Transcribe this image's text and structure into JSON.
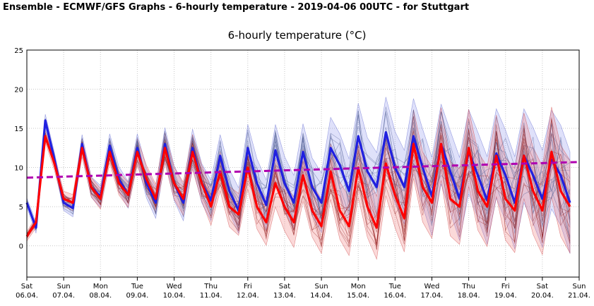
{
  "header": {
    "title": "Ensemble - ECMWF/GFS Graphs - 6-hourly temperature - 2019-04-06 00UTC - for Stuttgart"
  },
  "chart_data": {
    "type": "line",
    "title": "6-hourly temperature (°C)",
    "xlabel": "",
    "ylabel": "",
    "ylim": [
      -4,
      25
    ],
    "yticks": [
      0,
      5,
      10,
      15,
      20,
      25
    ],
    "grid": true,
    "date_labels": [
      {
        "day": "Sat",
        "date": "06.04."
      },
      {
        "day": "Sun",
        "date": "07.04."
      },
      {
        "day": "Mon",
        "date": "08.04."
      },
      {
        "day": "Tue",
        "date": "09.04."
      },
      {
        "day": "Wed",
        "date": "10.04."
      },
      {
        "day": "Thu",
        "date": "11.04."
      },
      {
        "day": "Fri",
        "date": "12.04."
      },
      {
        "day": "Sat",
        "date": "13.04."
      },
      {
        "day": "Sun",
        "date": "14.04."
      },
      {
        "day": "Mon",
        "date": "15.04."
      },
      {
        "day": "Tue",
        "date": "16.04."
      },
      {
        "day": "Wed",
        "date": "17.04."
      },
      {
        "day": "Thu",
        "date": "18.04."
      },
      {
        "day": "Fri",
        "date": "19.04."
      },
      {
        "day": "Sat",
        "date": "20.04."
      },
      {
        "day": "Sun",
        "date": "21.04."
      }
    ],
    "series": [
      {
        "color": "#2020e0",
        "values": [
          5.5,
          2.3,
          16.0,
          11.0,
          5.5,
          4.8,
          13.0,
          7.5,
          6.3,
          12.8,
          8.5,
          6.5,
          12.5,
          8.0,
          5.5,
          13.0,
          8.0,
          5.5,
          12.5,
          8.0,
          5.8,
          11.5,
          7.0,
          4.5,
          12.5,
          8.0,
          5.2,
          12.2,
          8.0,
          5.5,
          12.0,
          7.5,
          5.5,
          12.5,
          10.3,
          7.0,
          14.0,
          9.5,
          7.5,
          14.5,
          10.0,
          7.5,
          14.0,
          10.0,
          6.3,
          13.0,
          9.5,
          6.0,
          12.0,
          9.0,
          5.8,
          11.8,
          9.0,
          5.5,
          11.5,
          9.0,
          6.0,
          11.0,
          9.0,
          5.5
        ]
      },
      {
        "color": "#ff0000",
        "values": [
          1.2,
          3.0,
          14.0,
          10.5,
          6.0,
          5.5,
          12.5,
          7.5,
          6.0,
          12.0,
          8.0,
          6.5,
          12.0,
          8.5,
          6.0,
          12.5,
          8.0,
          6.0,
          12.0,
          8.0,
          5.0,
          9.5,
          5.0,
          4.0,
          10.0,
          5.0,
          3.0,
          8.0,
          5.0,
          3.0,
          9.0,
          4.5,
          2.5,
          9.5,
          4.5,
          2.5,
          10.0,
          5.0,
          2.3,
          10.5,
          6.5,
          3.5,
          13.0,
          7.5,
          5.5,
          13.0,
          6.0,
          5.0,
          12.5,
          7.0,
          5.0,
          11.5,
          6.0,
          4.5,
          11.5,
          7.0,
          4.5,
          12.0,
          7.0,
          5.0
        ]
      },
      {
        "color": "#b000b0",
        "dash": true,
        "values": [
          8.7,
          8.8,
          8.9,
          9.0,
          9.1,
          9.2,
          9.3,
          9.4,
          9.5,
          9.6,
          9.7,
          9.8,
          9.9,
          10.0,
          10.1,
          10.2,
          10.3,
          10.4,
          10.5,
          10.6,
          10.7
        ]
      }
    ]
  }
}
